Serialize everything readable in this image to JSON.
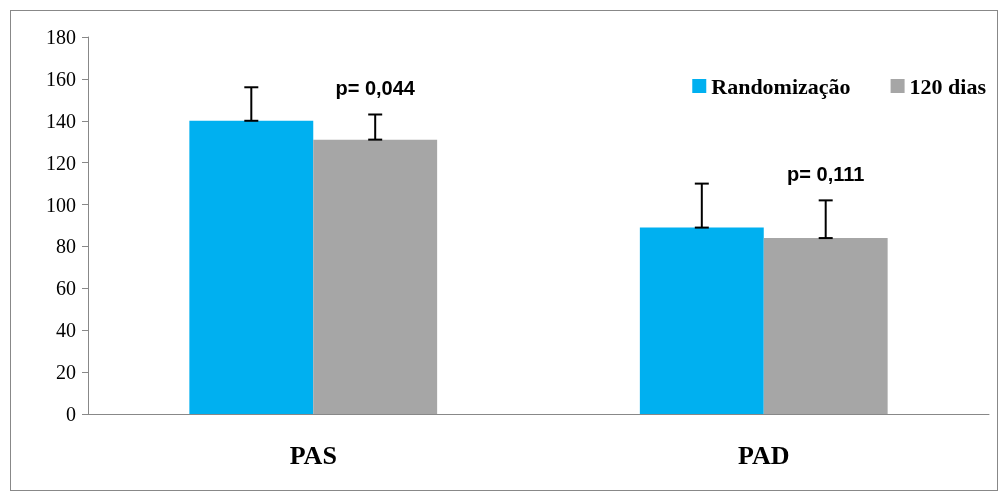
{
  "chart_data": {
    "type": "bar",
    "categories": [
      "PAS",
      "PAD"
    ],
    "series": [
      {
        "name": "Randomização",
        "color": "#00b0f0",
        "values": [
          140,
          89
        ],
        "errors": [
          [
            140,
            156
          ],
          [
            89,
            110
          ]
        ]
      },
      {
        "name": "120 dias",
        "color": "#a6a6a6",
        "values": [
          131,
          84
        ],
        "errors": [
          [
            131,
            143
          ],
          [
            84,
            102
          ]
        ]
      }
    ],
    "ylim": [
      0,
      180
    ],
    "yticks": [
      0,
      20,
      40,
      60,
      80,
      100,
      120,
      140,
      160,
      180
    ],
    "annotations": [
      "p= 0,044",
      "p= 0,111"
    ],
    "grid": false,
    "legend": "top right"
  }
}
